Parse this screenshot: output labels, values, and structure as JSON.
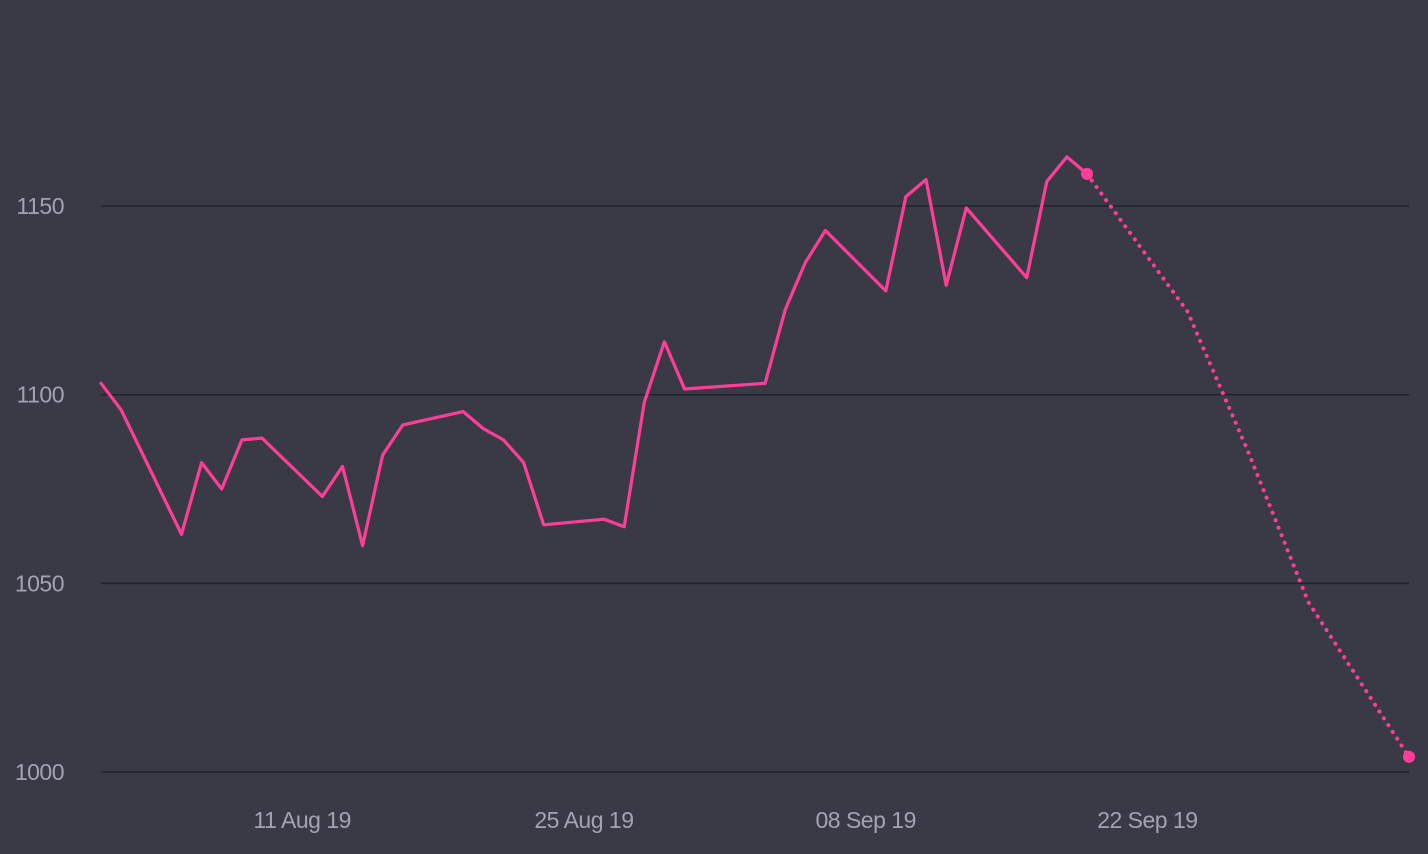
{
  "colors": {
    "background": "#3a3a46",
    "gridline": "#23232b",
    "tick_text": "#a3a3b3",
    "series_line": "#ff3f97"
  },
  "chart_data": {
    "type": "line",
    "title": "",
    "xlabel": "",
    "ylabel": "",
    "ylim": [
      1000,
      1185
    ],
    "xlim": [
      "2019-08-01",
      "2019-10-05"
    ],
    "grid": true,
    "legend": "none",
    "y_ticks": [
      1000,
      1050,
      1100,
      1150
    ],
    "x_ticks": [
      {
        "date": "2019-08-11",
        "label": "11 Aug 19"
      },
      {
        "date": "2019-08-25",
        "label": "25 Aug 19"
      },
      {
        "date": "2019-09-08",
        "label": "08 Sep 19"
      },
      {
        "date": "2019-09-22",
        "label": "22 Sep 19"
      }
    ],
    "series": [
      {
        "style": "solid",
        "points": [
          {
            "x": "2019-08-01",
            "y": 1103
          },
          {
            "x": "2019-08-02",
            "y": 1096
          },
          {
            "x": "2019-08-05",
            "y": 1063
          },
          {
            "x": "2019-08-06",
            "y": 1082
          },
          {
            "x": "2019-08-07",
            "y": 1075
          },
          {
            "x": "2019-08-08",
            "y": 1088
          },
          {
            "x": "2019-08-09",
            "y": 1088.5
          },
          {
            "x": "2019-08-12",
            "y": 1073
          },
          {
            "x": "2019-08-13",
            "y": 1081
          },
          {
            "x": "2019-08-14",
            "y": 1060
          },
          {
            "x": "2019-08-15",
            "y": 1084
          },
          {
            "x": "2019-08-16",
            "y": 1092
          },
          {
            "x": "2019-08-19",
            "y": 1095.5
          },
          {
            "x": "2019-08-20",
            "y": 1091
          },
          {
            "x": "2019-08-21",
            "y": 1088
          },
          {
            "x": "2019-08-22",
            "y": 1082
          },
          {
            "x": "2019-08-23",
            "y": 1065.5
          },
          {
            "x": "2019-08-26",
            "y": 1067
          },
          {
            "x": "2019-08-27",
            "y": 1065
          },
          {
            "x": "2019-08-28",
            "y": 1098
          },
          {
            "x": "2019-08-29",
            "y": 1114
          },
          {
            "x": "2019-08-30",
            "y": 1101.5
          },
          {
            "x": "2019-09-03",
            "y": 1103
          },
          {
            "x": "2019-09-04",
            "y": 1122.5
          },
          {
            "x": "2019-09-05",
            "y": 1135
          },
          {
            "x": "2019-09-06",
            "y": 1143.5
          },
          {
            "x": "2019-09-09",
            "y": 1127.5
          },
          {
            "x": "2019-09-10",
            "y": 1152.5
          },
          {
            "x": "2019-09-11",
            "y": 1157
          },
          {
            "x": "2019-09-12",
            "y": 1129
          },
          {
            "x": "2019-09-13",
            "y": 1149.5
          },
          {
            "x": "2019-09-16",
            "y": 1131
          },
          {
            "x": "2019-09-17",
            "y": 1156.5
          },
          {
            "x": "2019-09-18",
            "y": 1163
          },
          {
            "x": "2019-09-19",
            "y": 1158.5
          }
        ]
      },
      {
        "style": "dotted",
        "points": [
          {
            "x": "2019-09-19",
            "y": 1158.5
          },
          {
            "x": "2019-09-24",
            "y": 1122
          },
          {
            "x": "2019-09-27",
            "y": 1085
          },
          {
            "x": "2019-09-30",
            "y": 1045
          },
          {
            "x": "2019-10-05",
            "y": 1004
          }
        ]
      }
    ]
  }
}
